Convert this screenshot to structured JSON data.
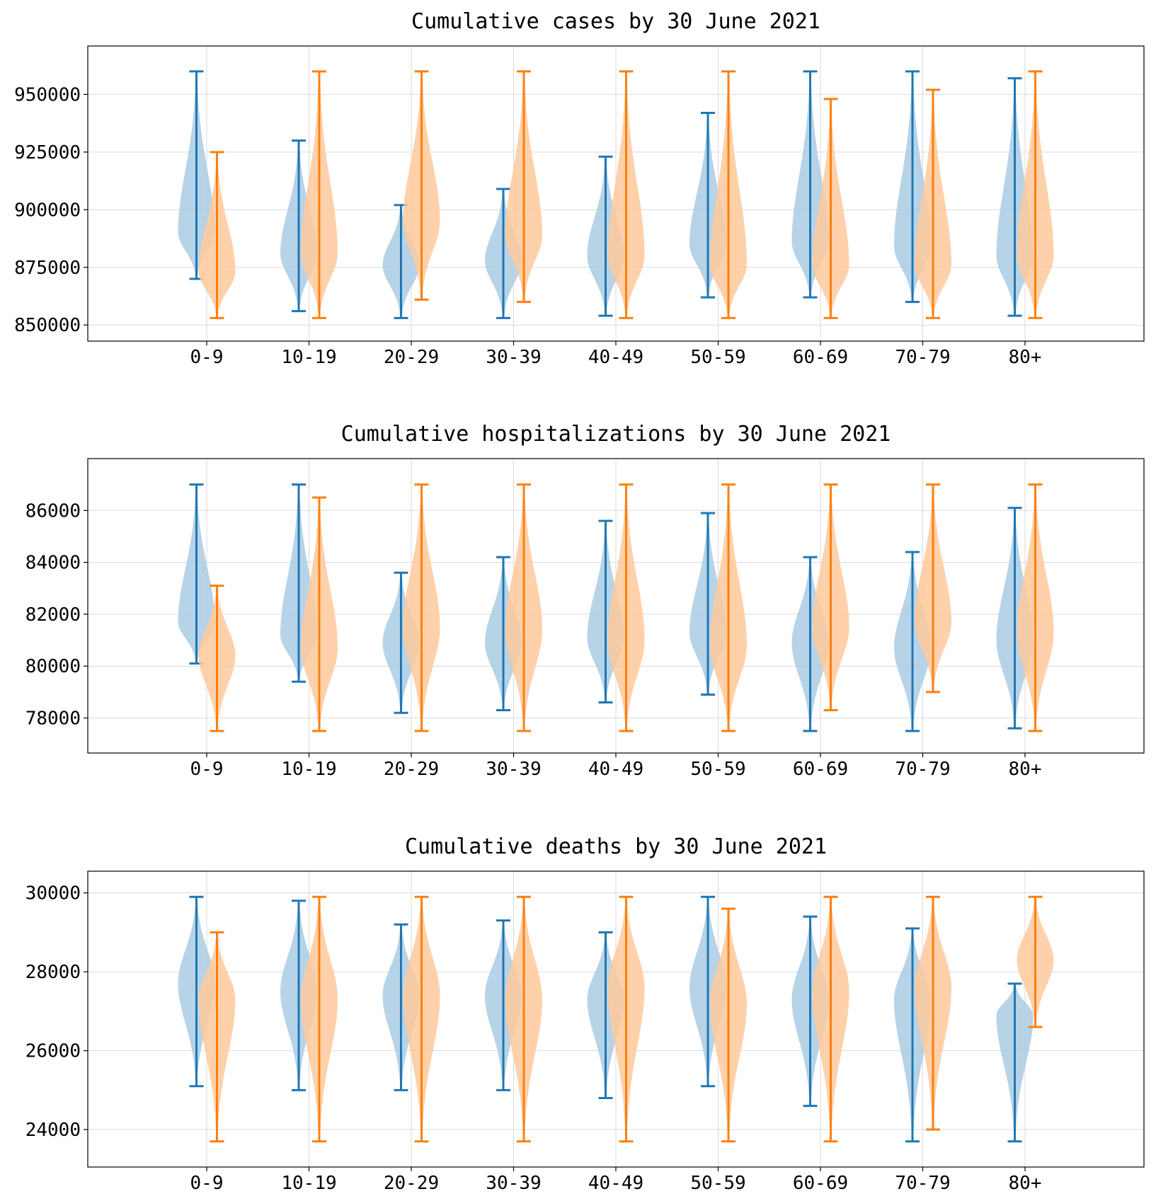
{
  "colors": {
    "series_a": "#1f77b4",
    "series_a_fill": "#aacbe3",
    "series_b": "#ff7f0e",
    "series_b_fill": "#ffc99b"
  },
  "chart_data": [
    {
      "type": "violin",
      "title": "Cumulative cases by 30 June 2021",
      "categories": [
        "0-9",
        "10-19",
        "20-29",
        "30-39",
        "40-49",
        "50-59",
        "60-69",
        "70-79",
        "80+"
      ],
      "yticks": [
        850000,
        875000,
        900000,
        925000,
        950000
      ],
      "ylim": [
        843000,
        971000
      ],
      "grid": true,
      "series": [
        {
          "min": [
            870000,
            856000,
            853000,
            853000,
            854000,
            862000,
            862000,
            860000,
            854000
          ],
          "max": [
            960000,
            930000,
            902000,
            909000,
            923000,
            942000,
            960000,
            960000,
            957000
          ],
          "mode": [
            890000,
            881000,
            876000,
            878000,
            880000,
            885000,
            886000,
            884000,
            880000
          ]
        },
        {
          "min": [
            853000,
            853000,
            861000,
            860000,
            853000,
            853000,
            853000,
            853000,
            853000
          ],
          "max": [
            925000,
            960000,
            960000,
            960000,
            960000,
            960000,
            948000,
            952000,
            960000
          ],
          "mode": [
            873000,
            881000,
            895000,
            889000,
            880000,
            876000,
            876000,
            876000,
            880000
          ]
        }
      ]
    },
    {
      "type": "violin",
      "title": "Cumulative hospitalizations by 30 June 2021",
      "categories": [
        "0-9",
        "10-19",
        "20-29",
        "30-39",
        "40-49",
        "50-59",
        "60-69",
        "70-79",
        "80+"
      ],
      "yticks": [
        78000,
        80000,
        82000,
        84000,
        86000
      ],
      "ylim": [
        76650,
        88000
      ],
      "grid": true,
      "series": [
        {
          "min": [
            80100,
            79400,
            78200,
            78300,
            78600,
            78900,
            77500,
            77500,
            77600
          ],
          "max": [
            87000,
            87000,
            83600,
            84200,
            85600,
            85900,
            84200,
            84400,
            86100
          ],
          "mode": [
            81700,
            81200,
            80900,
            80900,
            81100,
            81300,
            80900,
            80700,
            81000
          ]
        },
        {
          "min": [
            77500,
            77500,
            77500,
            77500,
            77500,
            77500,
            78300,
            79000,
            77500
          ],
          "max": [
            83100,
            86500,
            87000,
            87000,
            87000,
            87000,
            87000,
            87000,
            87000
          ],
          "mode": [
            80400,
            80700,
            81500,
            81400,
            81000,
            80800,
            81500,
            81700,
            81300
          ]
        }
      ]
    },
    {
      "type": "violin",
      "title": "Cumulative deaths by 30 June 2021",
      "categories": [
        "0-9",
        "10-19",
        "20-29",
        "30-39",
        "40-49",
        "50-59",
        "60-69",
        "70-79",
        "80+"
      ],
      "yticks": [
        24000,
        26000,
        28000,
        30000
      ],
      "ylim": [
        23050,
        30550
      ],
      "grid": true,
      "series": [
        {
          "min": [
            25100,
            25000,
            25000,
            25000,
            24800,
            25100,
            24600,
            23700,
            23700
          ],
          "max": [
            29900,
            29800,
            29200,
            29300,
            29000,
            29900,
            29400,
            29100,
            27700
          ],
          "mode": [
            27700,
            27500,
            27400,
            27400,
            27300,
            27600,
            27300,
            27300,
            26900
          ]
        },
        {
          "min": [
            23700,
            23700,
            23700,
            23700,
            23700,
            23700,
            23700,
            24000,
            26600
          ],
          "max": [
            29000,
            29900,
            29900,
            29900,
            29900,
            29600,
            29900,
            29900,
            29900
          ],
          "mode": [
            27300,
            27300,
            27400,
            27300,
            27600,
            27200,
            27500,
            27600,
            28300
          ]
        }
      ]
    }
  ]
}
